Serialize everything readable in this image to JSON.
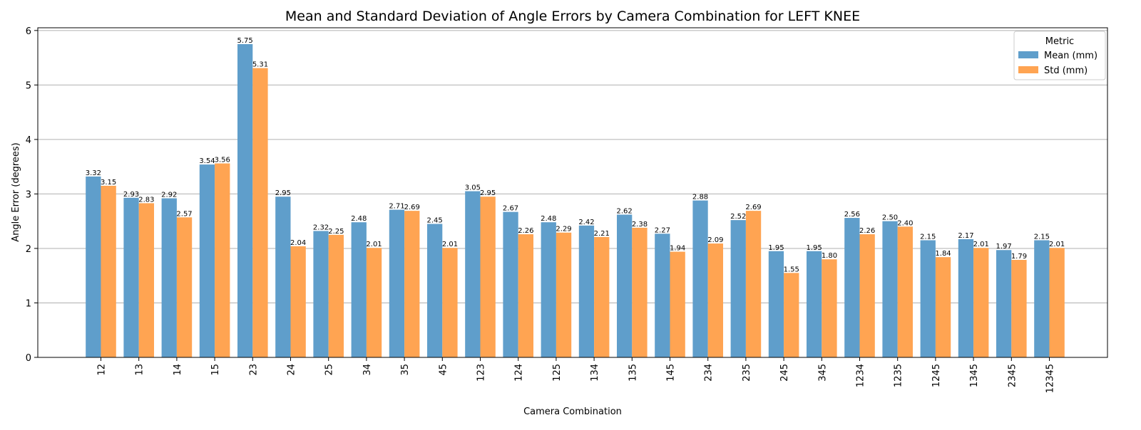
{
  "chart_data": {
    "type": "bar",
    "title": "Mean and Standard Deviation of Angle Errors by Camera Combination for LEFT KNEE",
    "xlabel": "Camera Combination",
    "ylabel": "Angle Error (degrees)",
    "ylim": [
      0,
      6.05
    ],
    "yticks": [
      0,
      1,
      2,
      3,
      4,
      5,
      6
    ],
    "grid": "horizontal",
    "legend_title": "Metric",
    "legend_position": "top-right",
    "categories": [
      "12",
      "13",
      "14",
      "15",
      "23",
      "24",
      "25",
      "34",
      "35",
      "45",
      "123",
      "124",
      "125",
      "134",
      "135",
      "145",
      "234",
      "235",
      "245",
      "345",
      "1234",
      "1235",
      "1245",
      "1345",
      "2345",
      "12345"
    ],
    "series": [
      {
        "name": "Mean (mm)",
        "color": "#5f9ecb",
        "values": [
          3.32,
          2.93,
          2.92,
          3.54,
          5.75,
          2.95,
          2.32,
          2.48,
          2.71,
          2.45,
          3.05,
          2.67,
          2.48,
          2.42,
          2.62,
          2.27,
          2.88,
          2.52,
          1.95,
          1.95,
          2.56,
          2.5,
          2.15,
          2.17,
          1.97,
          2.15
        ]
      },
      {
        "name": "Std (mm)",
        "color": "#ffa452",
        "values": [
          3.15,
          2.83,
          2.57,
          3.56,
          5.31,
          2.04,
          2.25,
          2.01,
          2.69,
          2.01,
          2.95,
          2.26,
          2.29,
          2.21,
          2.38,
          1.94,
          2.09,
          2.69,
          1.55,
          1.8,
          2.26,
          2.4,
          1.84,
          2.01,
          1.79,
          2.01
        ]
      }
    ]
  }
}
